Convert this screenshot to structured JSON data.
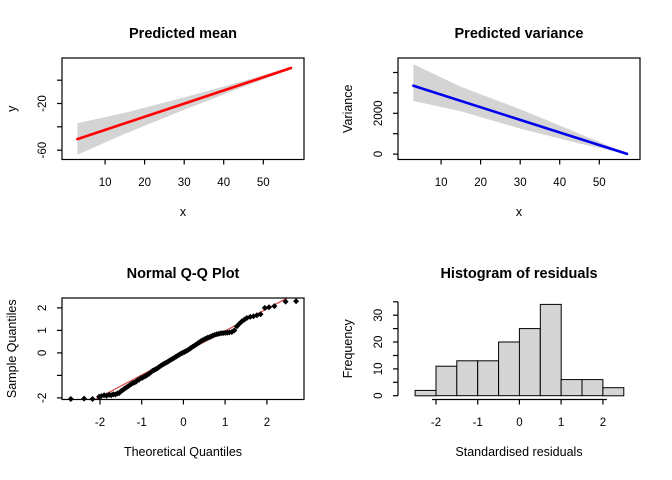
{
  "figure": {
    "background": "#ffffff"
  },
  "chart_data": [
    {
      "id": "predicted-mean",
      "type": "line",
      "title": "Predicted mean",
      "xlabel": "x",
      "ylabel": "y",
      "xlim": [
        -0.9,
        60.3
      ],
      "ylim": [
        -68,
        19
      ],
      "xticks": [
        {
          "v": 10,
          "label": "10"
        },
        {
          "v": 20,
          "label": "20"
        },
        {
          "v": 30,
          "label": "30"
        },
        {
          "v": 40,
          "label": "40"
        },
        {
          "v": 50,
          "label": "50"
        }
      ],
      "yticks": [
        {
          "v": -60,
          "label": "-60"
        },
        {
          "v": -40,
          "label": ""
        },
        {
          "v": -20,
          "label": "-20"
        },
        {
          "v": 0,
          "label": ""
        }
      ],
      "box": true,
      "band": {
        "color": "#d4d4d4",
        "upper": [
          [
            3,
            -37
          ],
          [
            15,
            -28
          ],
          [
            30,
            -14.8
          ],
          [
            45,
            -0.7
          ],
          [
            57,
            11.4
          ]
        ],
        "lower": [
          [
            3,
            -64
          ],
          [
            15,
            -46
          ],
          [
            30,
            -25.4
          ],
          [
            45,
            -5.7
          ],
          [
            57,
            9.4
          ]
        ]
      },
      "line": {
        "color": "#ff0000",
        "width": 2.6,
        "points": [
          [
            3,
            -50.5
          ],
          [
            30,
            -20.1
          ],
          [
            57,
            10.4
          ]
        ]
      }
    },
    {
      "id": "predicted-variance",
      "type": "line",
      "title": "Predicted variance",
      "xlabel": "x",
      "ylabel": "Variance",
      "xlim": [
        -0.9,
        60.3
      ],
      "ylim": [
        -264,
        4709
      ],
      "xticks": [
        {
          "v": 10,
          "label": "10"
        },
        {
          "v": 20,
          "label": "20"
        },
        {
          "v": 30,
          "label": "30"
        },
        {
          "v": 40,
          "label": "40"
        },
        {
          "v": 50,
          "label": "50"
        }
      ],
      "yticks": [
        {
          "v": 0,
          "label": "0"
        },
        {
          "v": 1000,
          "label": ""
        },
        {
          "v": 2000,
          "label": "2000"
        },
        {
          "v": 3000,
          "label": ""
        },
        {
          "v": 4000,
          "label": ""
        }
      ],
      "box": true,
      "band": {
        "color": "#d4d4d4",
        "upper": [
          [
            3,
            4400
          ],
          [
            15,
            3300
          ],
          [
            30,
            2200
          ],
          [
            45,
            1000
          ],
          [
            57,
            50
          ]
        ],
        "lower": [
          [
            3,
            2600
          ],
          [
            15,
            2100
          ],
          [
            30,
            1250
          ],
          [
            45,
            520
          ],
          [
            57,
            0
          ]
        ]
      },
      "line": {
        "color": "#0000ee",
        "width": 2.6,
        "points": [
          [
            3,
            3350
          ],
          [
            30,
            1676
          ],
          [
            57,
            10
          ]
        ]
      }
    },
    {
      "id": "normal-qq",
      "type": "scatter",
      "title": "Normal Q-Q Plot",
      "xlabel": "Theoretical Quantiles",
      "ylabel": "Sample Quantiles",
      "xlim": [
        -2.91,
        2.89
      ],
      "ylim": [
        -2.07,
        2.44
      ],
      "xticks": [
        {
          "v": -2,
          "label": "-2"
        },
        {
          "v": -1,
          "label": "-1"
        },
        {
          "v": 0,
          "label": "0"
        },
        {
          "v": 1,
          "label": "1"
        },
        {
          "v": 2,
          "label": "2"
        }
      ],
      "yticks": [
        {
          "v": -2,
          "label": "-2"
        },
        {
          "v": -1,
          "label": ""
        },
        {
          "v": 0,
          "label": "0"
        },
        {
          "v": 1,
          "label": "1"
        },
        {
          "v": 2,
          "label": "2"
        }
      ],
      "box": true,
      "refline": {
        "color": "#dd5555",
        "width": 1.3,
        "points": [
          [
            -2.11,
            -2.07
          ],
          [
            2.49,
            2.44
          ]
        ]
      },
      "marker": {
        "shape": "diamond",
        "size": 3,
        "color": "#000000"
      },
      "points": [
        [
          -2.7,
          -2.05
        ],
        [
          -2.38,
          -2.03
        ],
        [
          -2.18,
          -2.05
        ],
        [
          -2.02,
          -1.95
        ],
        [
          -1.97,
          -1.92
        ],
        [
          -1.9,
          -1.88
        ],
        [
          -1.84,
          -1.9
        ],
        [
          -1.78,
          -1.86
        ],
        [
          -1.73,
          -1.88
        ],
        [
          -1.68,
          -1.84
        ],
        [
          -1.63,
          -1.85
        ],
        [
          -1.58,
          -1.8
        ],
        [
          -1.54,
          -1.78
        ],
        [
          -1.5,
          -1.7
        ],
        [
          -1.46,
          -1.66
        ],
        [
          -1.42,
          -1.6
        ],
        [
          -1.38,
          -1.55
        ],
        [
          -1.34,
          -1.5
        ],
        [
          -1.3,
          -1.45
        ],
        [
          -1.26,
          -1.4
        ],
        [
          -1.22,
          -1.35
        ],
        [
          -1.18,
          -1.32
        ],
        [
          -1.14,
          -1.28
        ],
        [
          -1.1,
          -1.22
        ],
        [
          -1.06,
          -1.18
        ],
        [
          -1.02,
          -1.12
        ],
        [
          -0.98,
          -1.1
        ],
        [
          -0.94,
          -1.05
        ],
        [
          -0.9,
          -1.02
        ],
        [
          -0.86,
          -0.97
        ],
        [
          -0.82,
          -0.92
        ],
        [
          -0.78,
          -0.86
        ],
        [
          -0.74,
          -0.8
        ],
        [
          -0.7,
          -0.76
        ],
        [
          -0.66,
          -0.72
        ],
        [
          -0.62,
          -0.68
        ],
        [
          -0.58,
          -0.62
        ],
        [
          -0.54,
          -0.57
        ],
        [
          -0.5,
          -0.52
        ],
        [
          -0.46,
          -0.48
        ],
        [
          -0.42,
          -0.44
        ],
        [
          -0.38,
          -0.4
        ],
        [
          -0.34,
          -0.35
        ],
        [
          -0.3,
          -0.3
        ],
        [
          -0.26,
          -0.26
        ],
        [
          -0.22,
          -0.22
        ],
        [
          -0.18,
          -0.17
        ],
        [
          -0.14,
          -0.12
        ],
        [
          -0.1,
          -0.08
        ],
        [
          -0.06,
          -0.03
        ],
        [
          -0.02,
          0.0
        ],
        [
          0.02,
          0.04
        ],
        [
          0.06,
          0.08
        ],
        [
          0.1,
          0.12
        ],
        [
          0.14,
          0.17
        ],
        [
          0.18,
          0.22
        ],
        [
          0.22,
          0.27
        ],
        [
          0.26,
          0.32
        ],
        [
          0.3,
          0.37
        ],
        [
          0.34,
          0.42
        ],
        [
          0.38,
          0.47
        ],
        [
          0.42,
          0.52
        ],
        [
          0.46,
          0.56
        ],
        [
          0.5,
          0.6
        ],
        [
          0.54,
          0.64
        ],
        [
          0.58,
          0.67
        ],
        [
          0.62,
          0.7
        ],
        [
          0.66,
          0.73
        ],
        [
          0.7,
          0.76
        ],
        [
          0.75,
          0.8
        ],
        [
          0.8,
          0.83
        ],
        [
          0.85,
          0.85
        ],
        [
          0.9,
          0.87
        ],
        [
          0.95,
          0.88
        ],
        [
          1.0,
          0.89
        ],
        [
          1.05,
          0.9
        ],
        [
          1.1,
          0.91
        ],
        [
          1.16,
          0.93
        ],
        [
          1.22,
          1.0
        ],
        [
          1.28,
          1.18
        ],
        [
          1.34,
          1.3
        ],
        [
          1.4,
          1.4
        ],
        [
          1.46,
          1.48
        ],
        [
          1.52,
          1.55
        ],
        [
          1.6,
          1.6
        ],
        [
          1.68,
          1.63
        ],
        [
          1.76,
          1.67
        ],
        [
          1.85,
          1.72
        ],
        [
          1.95,
          2.0
        ],
        [
          2.05,
          2.03
        ],
        [
          2.18,
          2.08
        ],
        [
          2.45,
          2.28
        ],
        [
          2.7,
          2.3
        ]
      ]
    },
    {
      "id": "residual-histogram",
      "type": "bar",
      "title": "Histogram of residuals",
      "xlabel": "Standardised residuals",
      "ylabel": "Frequency",
      "xlim": [
        -2.91,
        2.89
      ],
      "ylim": [
        -1.4,
        36.4
      ],
      "xticks": [
        {
          "v": -2,
          "label": "-2"
        },
        {
          "v": -1,
          "label": "-1"
        },
        {
          "v": 0,
          "label": "0"
        },
        {
          "v": 1,
          "label": "1"
        },
        {
          "v": 2,
          "label": "2"
        }
      ],
      "yticks": [
        {
          "v": 0,
          "label": "0"
        },
        {
          "v": 5,
          "label": ""
        },
        {
          "v": 10,
          "label": "10"
        },
        {
          "v": 15,
          "label": ""
        },
        {
          "v": 20,
          "label": "20"
        },
        {
          "v": 25,
          "label": ""
        },
        {
          "v": 30,
          "label": "30"
        },
        {
          "v": 35,
          "label": ""
        }
      ],
      "box": false,
      "axis_lines": {
        "x": [
          -2,
          2
        ],
        "y": [
          0,
          35
        ]
      },
      "bin_start": -2.5,
      "bin_width": 0.5,
      "counts": [
        2,
        11,
        13,
        13,
        20,
        25,
        34,
        6,
        6,
        3
      ],
      "bar_fill": "#d5d5d5",
      "bar_stroke": "#000000"
    }
  ]
}
